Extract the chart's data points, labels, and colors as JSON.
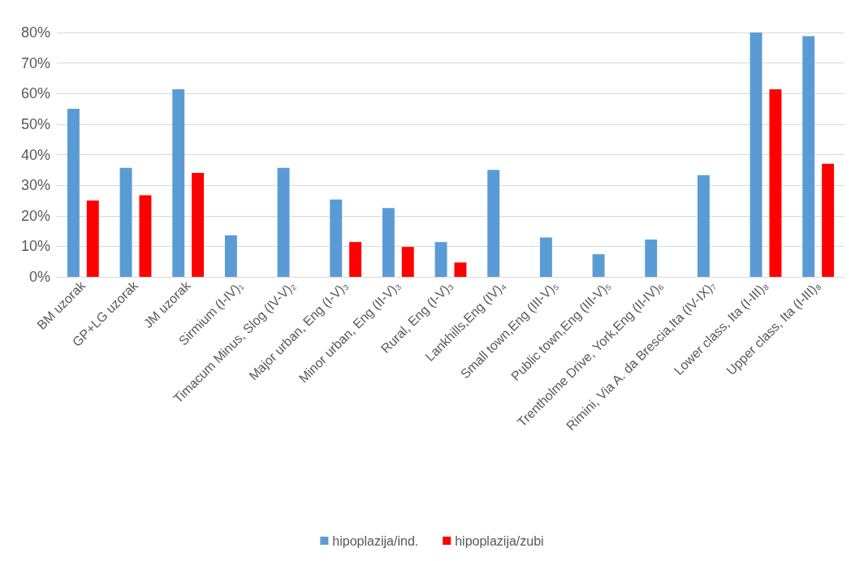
{
  "chart_data": {
    "type": "bar",
    "categories": [
      "BM uzorak",
      "GP+LG uzorak",
      "JM uzorak",
      "Sirmium (I-IV)₁",
      "Timacum Minus, Slog (IV-V)₂",
      "Major urban, Eng (I-V)₃",
      "Minor urban, Eng (II-V)₃",
      "Rural, Eng (I-V)₃",
      "Lankhills,Eng (IV)₄",
      "Small town,Eng (III-V)₅",
      "Public town,Eng (III-V)₅",
      "Trentholme Drive, York,Eng (II-IV)₆",
      "Rimini, Via A. da Brescia,Ita (IV-IX)₇",
      "Lower class, Ita (I-III)₈",
      "Upper class, Ita (I-III)₈"
    ],
    "series": [
      {
        "name": "hipoplazija/ind.",
        "color": "#5b9bd5",
        "values": [
          55,
          35.7,
          61.4,
          13.6,
          35.7,
          25.3,
          22.5,
          11.4,
          35,
          12.9,
          7.4,
          12.2,
          33.3,
          80,
          78.8
        ]
      },
      {
        "name": "hipoplazija/zubi",
        "color": "#ff0000",
        "values": [
          25,
          26.7,
          34,
          null,
          null,
          11.4,
          9.8,
          4.7,
          null,
          null,
          null,
          null,
          null,
          61.4,
          37
        ]
      }
    ],
    "ylim": [
      0,
      80
    ],
    "yticks": [
      {
        "value": 0,
        "label": "0%"
      },
      {
        "value": 10,
        "label": "10%"
      },
      {
        "value": 20,
        "label": "20%"
      },
      {
        "value": 30,
        "label": "30%"
      },
      {
        "value": 40,
        "label": "40%"
      },
      {
        "value": 50,
        "label": "50%"
      },
      {
        "value": 60,
        "label": "60%"
      },
      {
        "value": 70,
        "label": "70%"
      },
      {
        "value": 80,
        "label": "80%"
      }
    ],
    "grid": "y",
    "legend": "bottom"
  }
}
